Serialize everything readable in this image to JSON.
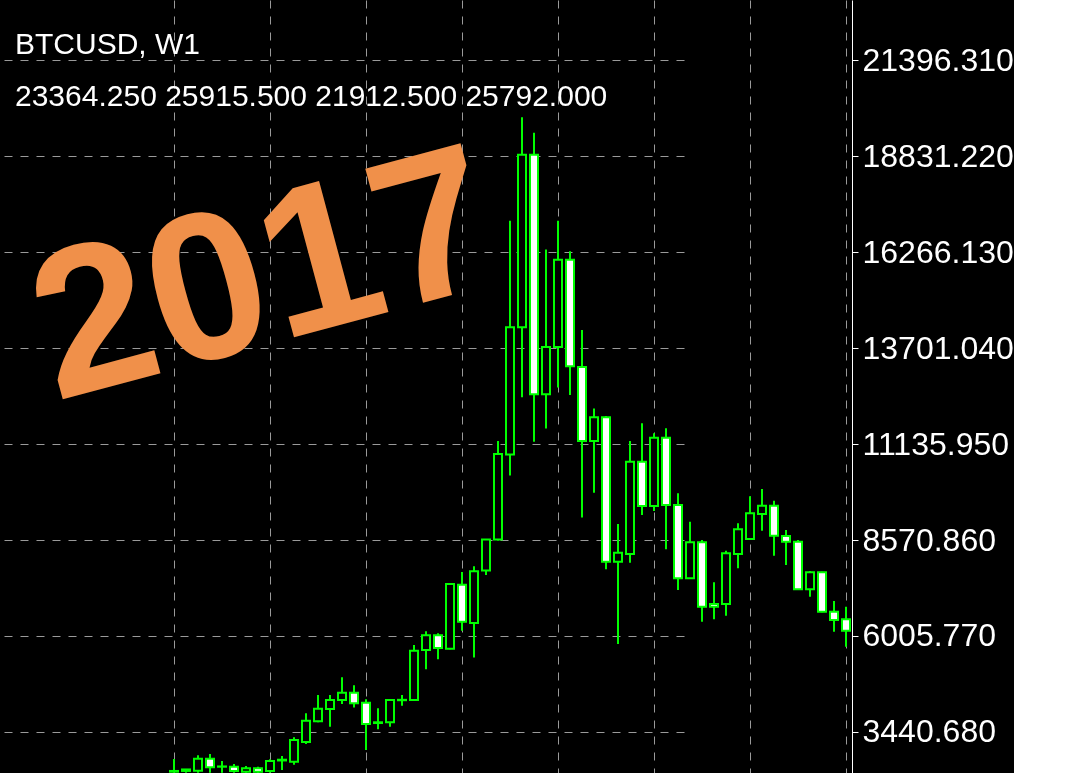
{
  "chart_data": {
    "type": "candlestick",
    "annotations": [
      "BTCUSD, W1",
      "23364.250 25915.500 21912.500 25792.000",
      "2017"
    ],
    "categories": [
      null,
      null,
      null,
      null,
      null,
      null,
      null,
      null,
      null,
      null,
      null,
      null,
      null,
      null,
      null,
      null,
      null,
      null,
      null,
      null,
      null,
      null,
      null,
      null,
      null,
      null,
      null,
      null,
      null,
      null,
      null,
      null,
      null,
      null,
      null,
      null,
      null,
      null,
      null,
      null,
      null,
      null,
      null,
      null,
      null,
      null,
      null,
      null,
      null,
      null,
      null,
      null,
      null,
      null,
      null,
      null,
      null
    ],
    "ohlc": [
      [
        2400,
        2720,
        2350,
        2380
      ],
      [
        2400,
        2450,
        2350,
        2440
      ],
      [
        2406,
        2818,
        2350,
        2727
      ],
      [
        2727,
        2852,
        2350,
        2497
      ],
      [
        2513,
        2665,
        2350,
        2520
      ],
      [
        2513,
        2585,
        2350,
        2400
      ],
      [
        2380,
        2532,
        2350,
        2470
      ],
      [
        2470,
        2513,
        2350,
        2380
      ],
      [
        2400,
        2710,
        2350,
        2665
      ],
      [
        2680,
        2799,
        2425,
        2700
      ],
      [
        2648,
        3298,
        2568,
        3226
      ],
      [
        3174,
        3940,
        3120,
        3742
      ],
      [
        3726,
        4429,
        3700,
        4063
      ],
      [
        4055,
        4429,
        3582,
        4295
      ],
      [
        4295,
        4902,
        4188,
        4490
      ],
      [
        4490,
        4688,
        4092,
        4208
      ],
      [
        4225,
        4314,
        2959,
        3654
      ],
      [
        3680,
        4074,
        3512,
        3700
      ],
      [
        3700,
        4314,
        3582,
        4295
      ],
      [
        4290,
        4429,
        4144,
        4300
      ],
      [
        4295,
        5765,
        4290,
        5613
      ],
      [
        5632,
        6131,
        5116,
        6025
      ],
      [
        6025,
        6078,
        5383,
        5685
      ],
      [
        5667,
        7420,
        5650,
        7397
      ],
      [
        7376,
        7716,
        6149,
        6385
      ],
      [
        6353,
        7868,
        5432,
        7734
      ],
      [
        7756,
        8600,
        7636,
        8584
      ],
      [
        8584,
        11216,
        8560,
        10868
      ],
      [
        10858,
        17102,
        10294,
        14257
      ],
      [
        14257,
        19868,
        12384,
        18863
      ],
      [
        18863,
        19456,
        11195,
        12464
      ],
      [
        12464,
        16335,
        11553,
        13725
      ],
      [
        13725,
        17102,
        12648,
        16058
      ],
      [
        16058,
        16285,
        12445,
        13212
      ],
      [
        13193,
        14185,
        9169,
        11216
      ],
      [
        11216,
        12087,
        9834,
        11852
      ],
      [
        11848,
        11883,
        7787,
        7990
      ],
      [
        7990,
        8998,
        5792,
        8232
      ],
      [
        8196,
        11216,
        7965,
        10662
      ],
      [
        10662,
        11688,
        9239,
        9479
      ],
      [
        9479,
        11421,
        9346,
        11304
      ],
      [
        11304,
        11555,
        8322,
        9506
      ],
      [
        9506,
        9819,
        7235,
        7547
      ],
      [
        7547,
        9060,
        7540,
        8509
      ],
      [
        8509,
        8570,
        6388,
        6789
      ],
      [
        6860,
        7440,
        6452,
        6789
      ],
      [
        6860,
        8285,
        6548,
        8215
      ],
      [
        8196,
        9016,
        7814,
        8856
      ],
      [
        8597,
        9739,
        8590,
        9284
      ],
      [
        9266,
        9935,
        8820,
        9488
      ],
      [
        9488,
        9621,
        8152,
        8686
      ],
      [
        8677,
        8837,
        7902,
        8525
      ],
      [
        8525,
        8570,
        7240,
        7253
      ],
      [
        7253,
        7743,
        7056,
        7707
      ],
      [
        7707,
        7720,
        6640,
        6655
      ],
      [
        6655,
        6940,
        6120,
        6433
      ],
      [
        6452,
        6789,
        5719,
        6147
      ]
    ],
    "color": "#00ff00",
    "ylim": [
      2345,
      23000
    ],
    "yticks": [
      {
        "value": 3440.68,
        "label": "3440.680"
      },
      {
        "value": 6005.77,
        "label": "6005.770"
      },
      {
        "value": 8570.86,
        "label": "8570.860"
      },
      {
        "value": 11135.95,
        "label": "11135.950"
      },
      {
        "value": 13701.04,
        "label": "13701.040"
      },
      {
        "value": 16266.13,
        "label": "16266.130"
      },
      {
        "value": 18831.22,
        "label": "18831.220"
      },
      {
        "value": 21396.31,
        "label": "21396.310"
      }
    ],
    "grid": true
  }
}
